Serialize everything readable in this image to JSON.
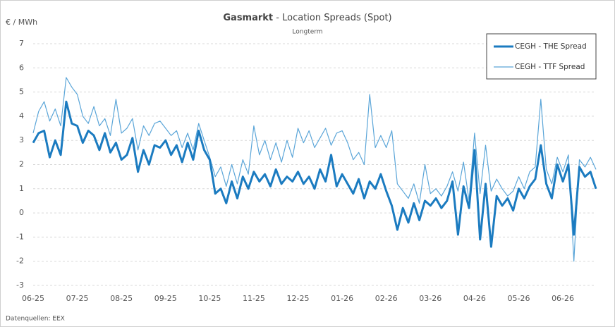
{
  "chart_data": {
    "type": "line",
    "title_bold": "Gasmarkt",
    "title": " - Location Spreads (Spot)",
    "subtitle": "Longterm",
    "y_label": "€ / MWh",
    "source": "Datenquellen: EEX",
    "categories": [
      "06-25",
      null,
      null,
      null,
      null,
      null,
      null,
      null,
      "07-25",
      null,
      null,
      null,
      null,
      null,
      null,
      null,
      "08-25",
      null,
      null,
      null,
      null,
      null,
      null,
      null,
      "09-25",
      null,
      null,
      null,
      null,
      null,
      null,
      null,
      "10-25",
      null,
      null,
      null,
      null,
      null,
      null,
      null,
      "11-25",
      null,
      null,
      null,
      null,
      null,
      null,
      null,
      "12-25",
      null,
      null,
      null,
      null,
      null,
      null,
      null,
      "01-26",
      null,
      null,
      null,
      null,
      null,
      null,
      null,
      "02-26",
      null,
      null,
      null,
      null,
      null,
      null,
      null,
      "03-26",
      null,
      null,
      null,
      null,
      null,
      null,
      null,
      "04-26",
      null,
      null,
      null,
      null,
      null,
      null,
      null,
      "05-26",
      null,
      null,
      null,
      null,
      null,
      null,
      null,
      "06-26",
      null,
      null,
      null,
      null,
      null,
      null
    ],
    "series": [
      {
        "name": "CEGH - THE Spread",
        "color": "#1b7bc0",
        "width": 3,
        "values": [
          2.9,
          3.3,
          3.4,
          2.3,
          3.0,
          2.4,
          4.6,
          3.7,
          3.6,
          2.9,
          3.4,
          3.2,
          2.6,
          3.3,
          2.5,
          2.9,
          2.2,
          2.4,
          3.1,
          1.7,
          2.6,
          2.0,
          2.8,
          2.7,
          3.0,
          2.4,
          2.8,
          2.1,
          2.9,
          2.2,
          3.4,
          2.6,
          2.2,
          0.8,
          1.0,
          0.4,
          1.3,
          0.6,
          1.5,
          1.0,
          1.7,
          1.3,
          1.6,
          1.1,
          1.8,
          1.2,
          1.5,
          1.3,
          1.7,
          1.2,
          1.5,
          1.0,
          1.8,
          1.3,
          2.4,
          1.1,
          1.6,
          1.2,
          0.8,
          1.4,
          0.6,
          1.3,
          1.0,
          1.6,
          0.9,
          0.3,
          -0.7,
          0.2,
          -0.4,
          0.4,
          -0.3,
          0.5,
          0.3,
          0.6,
          0.2,
          0.5,
          1.3,
          -0.9,
          1.1,
          0.2,
          2.6,
          -1.1,
          1.2,
          -1.4,
          0.7,
          0.3,
          0.6,
          0.1,
          1.0,
          0.6,
          1.1,
          1.4,
          2.8,
          1.2,
          0.6,
          2.0,
          1.3,
          2.0,
          -0.9,
          1.9,
          1.5,
          1.7,
          1.0
        ]
      },
      {
        "name": "CEGH - TTF Spread",
        "color": "#5aa5d8",
        "width": 1.2,
        "values": [
          3.3,
          4.2,
          4.6,
          3.8,
          4.3,
          3.6,
          5.6,
          5.2,
          4.9,
          4.0,
          3.7,
          4.4,
          3.6,
          3.9,
          3.2,
          4.7,
          3.3,
          3.5,
          3.9,
          2.6,
          3.6,
          3.2,
          3.7,
          3.8,
          3.5,
          3.2,
          3.4,
          2.7,
          3.3,
          2.6,
          3.7,
          3.0,
          2.3,
          1.5,
          1.9,
          1.1,
          2.0,
          1.2,
          2.2,
          1.6,
          3.6,
          2.4,
          3.0,
          2.2,
          2.9,
          2.1,
          3.0,
          2.3,
          3.5,
          2.9,
          3.4,
          2.7,
          3.1,
          3.5,
          2.8,
          3.3,
          3.4,
          2.9,
          2.2,
          2.5,
          2.0,
          4.9,
          2.7,
          3.2,
          2.7,
          3.4,
          1.2,
          0.9,
          0.6,
          1.2,
          0.4,
          2.0,
          0.8,
          1.0,
          0.7,
          1.1,
          1.7,
          0.9,
          2.1,
          0.5,
          3.3,
          0.8,
          2.8,
          0.9,
          1.4,
          1.0,
          0.7,
          0.9,
          1.5,
          1.0,
          1.7,
          1.9,
          4.7,
          1.8,
          1.2,
          2.3,
          1.7,
          2.4,
          -2.0,
          2.2,
          1.9,
          2.3,
          1.8
        ]
      }
    ],
    "ylim": [
      -3,
      7
    ],
    "yticks": [
      -3,
      -2,
      -1,
      0,
      1,
      2,
      3,
      4,
      5,
      6,
      7
    ],
    "grid": true,
    "legend": "top-right"
  }
}
